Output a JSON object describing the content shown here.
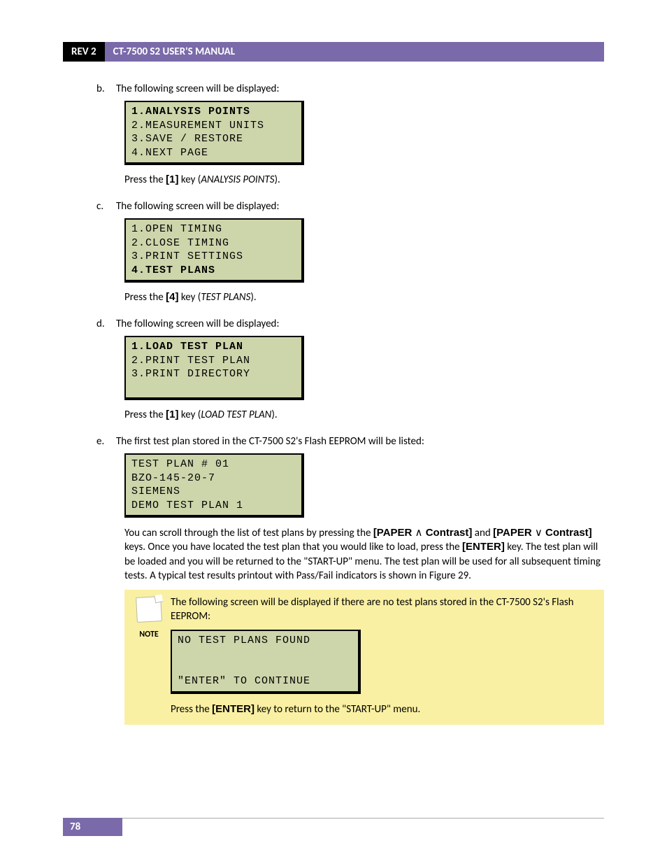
{
  "header": {
    "rev": "REV 2",
    "title": "CT-7500 S2 USER'S MANUAL"
  },
  "items": {
    "b": {
      "marker": "b.",
      "lead": "The following screen will be displayed:",
      "lcd": {
        "l1": "1.ANALYSIS POINTS",
        "l2": "2.MEASUREMENT UNITS",
        "l3": "3.SAVE / RESTORE",
        "l4": "4.NEXT PAGE",
        "bold": "l1"
      },
      "press_pre": "Press the ",
      "press_key": "[1]",
      "press_mid": " key (",
      "press_label": "ANALYSIS POINTS",
      "press_post": ")."
    },
    "c": {
      "marker": "c.",
      "lead": "The following screen will be displayed:",
      "lcd": {
        "l1": "1.OPEN TIMING",
        "l2": "2.CLOSE TIMING",
        "l3": "3.PRINT SETTINGS",
        "l4": "4.TEST PLANS",
        "bold": "l4"
      },
      "press_pre": "Press the ",
      "press_key": "[4]",
      "press_mid": " key (",
      "press_label": "TEST PLANS",
      "press_post": ")."
    },
    "d": {
      "marker": "d.",
      "lead": "The following screen will be displayed:",
      "lcd": {
        "l1": "1.LOAD TEST PLAN",
        "l2": "2.PRINT TEST PLAN",
        "l3": "3.PRINT DIRECTORY",
        "l4": "",
        "bold": "l1"
      },
      "press_pre": "Press the ",
      "press_key": "[1]",
      "press_mid": " key (",
      "press_label": "LOAD TEST PLAN",
      "press_post": ")."
    },
    "e": {
      "marker": "e.",
      "lead": "The first test plan stored in the CT-7500 S2's Flash EEPROM will be listed:",
      "lcd": {
        "l1": "TEST PLAN # 01",
        "l2": "BZO-145-20-7",
        "l3": "SIEMENS",
        "l4": "DEMO TEST PLAN 1",
        "bold": ""
      },
      "para": {
        "p1": "You can scroll through the list of test plans by pressing the ",
        "k1": "[PAPER ",
        "sym1": "∧",
        "k1b": " Contrast]",
        "p2": " and ",
        "k2": "[PAPER ",
        "sym2": "∨",
        "k2b": " Contrast]",
        "p3": " keys. Once you have located the test plan that you would like to load, press the ",
        "k3": "[ENTER]",
        "p4": " key. The test plan will be loaded and you will be returned to the \"START-UP\" menu. The test plan will be used for all subsequent timing tests. A typical test results printout with Pass/Fail indicators is shown in Figure 29."
      },
      "note": {
        "label": "NOTE",
        "text": "The following screen will be displayed if there are no test plans stored in the CT-7500 S2's Flash EEPROM:",
        "lcd": {
          "l1": "NO TEST PLANS FOUND",
          "l2": "",
          "l3": "",
          "l4": "\"ENTER\" TO CONTINUE"
        },
        "press_pre": "Press the ",
        "press_key": "[ENTER]",
        "press_post": " key to return to the \"START-UP\" menu."
      }
    }
  },
  "footer": {
    "page": "78"
  }
}
